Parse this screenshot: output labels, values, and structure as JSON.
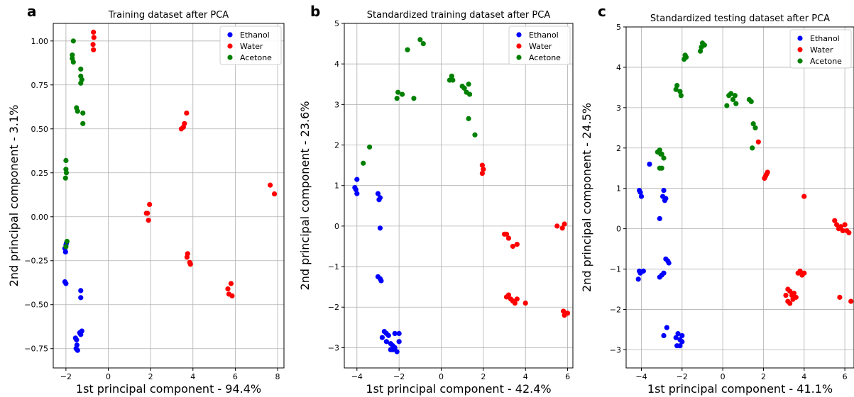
{
  "colors": {
    "Ethanol": "#0000ff",
    "Water": "#ff0000",
    "Acetone": "#008000"
  },
  "chart_data": [
    {
      "panel": "a",
      "type": "scatter",
      "title": "Training dataset after PCA",
      "xlabel": "1st principal component - 94.4%",
      "ylabel": "2nd principal component - 3.1%",
      "xlim": [
        -2.6,
        8.3
      ],
      "ylim": [
        -0.86,
        1.1
      ],
      "xticks": [
        -2,
        0,
        2,
        4,
        6,
        8
      ],
      "yticks": [
        -0.75,
        -0.5,
        -0.25,
        0.0,
        0.25,
        0.5,
        0.75,
        1.0
      ],
      "ytick_labels": [
        "−0.75",
        "−0.50",
        "−0.25",
        "0.00",
        "0.25",
        "0.50",
        "0.75",
        "1.00"
      ],
      "xtick_labels": [
        "−2",
        "0",
        "2",
        "4",
        "6",
        "8"
      ],
      "legend": "top-right",
      "grid": true,
      "series": [
        {
          "name": "Ethanol",
          "points": [
            [
              -2.0,
              -0.16
            ],
            [
              -2.05,
              -0.18
            ],
            [
              -2.02,
              -0.2
            ],
            [
              -1.98,
              -0.15
            ],
            [
              -2.05,
              -0.37
            ],
            [
              -2.0,
              -0.38
            ],
            [
              -1.3,
              -0.42
            ],
            [
              -1.3,
              -0.46
            ],
            [
              -1.35,
              -0.66
            ],
            [
              -1.3,
              -0.67
            ],
            [
              -1.55,
              -0.69
            ],
            [
              -1.5,
              -0.7
            ],
            [
              -1.48,
              -0.73
            ],
            [
              -1.52,
              -0.75
            ],
            [
              -1.45,
              -0.76
            ],
            [
              -1.25,
              -0.65
            ]
          ]
        },
        {
          "name": "Water",
          "points": [
            [
              -0.7,
              1.05
            ],
            [
              -0.68,
              1.02
            ],
            [
              -0.72,
              0.98
            ],
            [
              -0.7,
              0.95
            ],
            [
              3.45,
              0.5
            ],
            [
              3.55,
              0.51
            ],
            [
              3.6,
              0.53
            ],
            [
              3.7,
              0.59
            ],
            [
              1.85,
              0.02
            ],
            [
              1.95,
              0.07
            ],
            [
              1.9,
              -0.02
            ],
            [
              1.8,
              0.02
            ],
            [
              3.75,
              -0.21
            ],
            [
              3.72,
              -0.23
            ],
            [
              3.85,
              -0.26
            ],
            [
              3.88,
              -0.27
            ],
            [
              5.65,
              -0.41
            ],
            [
              5.7,
              -0.44
            ],
            [
              5.8,
              -0.38
            ],
            [
              5.85,
              -0.45
            ],
            [
              7.65,
              0.18
            ],
            [
              7.85,
              0.13
            ]
          ]
        },
        {
          "name": "Acetone",
          "points": [
            [
              -1.65,
              1.0
            ],
            [
              -1.7,
              0.92
            ],
            [
              -1.7,
              0.9
            ],
            [
              -1.65,
              0.88
            ],
            [
              -1.3,
              0.84
            ],
            [
              -1.3,
              0.8
            ],
            [
              -1.25,
              0.78
            ],
            [
              -1.3,
              0.76
            ],
            [
              -1.5,
              0.62
            ],
            [
              -1.45,
              0.6
            ],
            [
              -1.2,
              0.59
            ],
            [
              -1.2,
              0.53
            ],
            [
              -2.0,
              0.32
            ],
            [
              -2.0,
              0.27
            ],
            [
              -1.98,
              0.25
            ],
            [
              -2.02,
              0.22
            ],
            [
              -1.95,
              -0.14
            ],
            [
              -2.0,
              -0.17
            ]
          ]
        }
      ]
    },
    {
      "panel": "b",
      "type": "scatter",
      "title": "Standardized training dataset after PCA",
      "xlabel": "1st principal component - 42.4%",
      "ylabel": "2nd principal component  - 23.6%",
      "xlim": [
        -4.6,
        6.25
      ],
      "ylim": [
        -3.5,
        5.0
      ],
      "xticks": [
        -4,
        -2,
        0,
        2,
        4,
        6
      ],
      "xtick_labels": [
        "−4",
        "−2",
        "0",
        "2",
        "4",
        "6"
      ],
      "yticks": [
        -3,
        -2,
        -1,
        0,
        1,
        2,
        3,
        4,
        5
      ],
      "ytick_labels": [
        "−3",
        "−2",
        "−1",
        "0",
        "1",
        "2",
        "3",
        "4",
        "5"
      ],
      "legend": "top-right",
      "grid": true,
      "series": [
        {
          "name": "Ethanol",
          "points": [
            [
              -4.1,
              0.95
            ],
            [
              -4.0,
              1.15
            ],
            [
              -4.05,
              0.9
            ],
            [
              -4.0,
              0.8
            ],
            [
              -3.0,
              0.8
            ],
            [
              -2.9,
              0.7
            ],
            [
              -2.95,
              0.65
            ],
            [
              -2.9,
              -0.05
            ],
            [
              -3.0,
              -1.25
            ],
            [
              -2.9,
              -1.3
            ],
            [
              -2.85,
              -1.35
            ],
            [
              -2.7,
              -2.6
            ],
            [
              -2.6,
              -2.65
            ],
            [
              -2.5,
              -2.7
            ],
            [
              -2.8,
              -2.75
            ],
            [
              -2.6,
              -2.85
            ],
            [
              -2.4,
              -2.9
            ],
            [
              -2.3,
              -2.95
            ],
            [
              -2.2,
              -3.0
            ],
            [
              -2.4,
              -3.05
            ],
            [
              -2.1,
              -3.1
            ],
            [
              -2.0,
              -2.65
            ],
            [
              -2.2,
              -2.65
            ],
            [
              -2.0,
              -2.85
            ],
            [
              -2.3,
              -3.05
            ]
          ]
        },
        {
          "name": "Water",
          "points": [
            [
              1.95,
              1.5
            ],
            [
              2.0,
              1.4
            ],
            [
              1.95,
              1.3
            ],
            [
              3.0,
              -0.2
            ],
            [
              3.1,
              -0.2
            ],
            [
              3.2,
              -0.3
            ],
            [
              3.4,
              -0.5
            ],
            [
              3.6,
              -0.45
            ],
            [
              3.2,
              -1.7
            ],
            [
              3.1,
              -1.75
            ],
            [
              3.3,
              -1.8
            ],
            [
              3.4,
              -1.85
            ],
            [
              3.5,
              -1.9
            ],
            [
              3.6,
              -1.8
            ],
            [
              4.0,
              -1.9
            ],
            [
              5.5,
              0.0
            ],
            [
              5.75,
              -0.05
            ],
            [
              5.85,
              0.05
            ],
            [
              5.8,
              -2.1
            ],
            [
              5.9,
              -2.15
            ],
            [
              5.85,
              -2.2
            ],
            [
              6.0,
              -2.15
            ]
          ]
        },
        {
          "name": "Acetone",
          "points": [
            [
              -3.7,
              1.55
            ],
            [
              -3.4,
              1.95
            ],
            [
              -2.1,
              3.15
            ],
            [
              -2.05,
              3.3
            ],
            [
              -1.85,
              3.25
            ],
            [
              -1.3,
              3.15
            ],
            [
              -1.6,
              4.35
            ],
            [
              -1.0,
              4.6
            ],
            [
              -0.85,
              4.5
            ],
            [
              0.4,
              3.6
            ],
            [
              0.5,
              3.7
            ],
            [
              0.55,
              3.6
            ],
            [
              1.0,
              3.45
            ],
            [
              1.1,
              3.4
            ],
            [
              1.3,
              3.5
            ],
            [
              1.2,
              3.3
            ],
            [
              1.35,
              3.25
            ],
            [
              1.3,
              2.65
            ],
            [
              1.6,
              2.25
            ]
          ]
        }
      ]
    },
    {
      "panel": "c",
      "type": "scatter",
      "title": "Standardized testing dataset after PCA",
      "xlabel": "1st principal component - 41.1%",
      "ylabel": "2nd principal component  - 24.5%",
      "xlim": [
        -4.75,
        6.45
      ],
      "ylim": [
        -3.45,
        5.0
      ],
      "xticks": [
        -4,
        -2,
        0,
        2,
        4,
        6
      ],
      "xtick_labels": [
        "−4",
        "−2",
        "0",
        "2",
        "4",
        "6"
      ],
      "yticks": [
        -3,
        -2,
        -1,
        0,
        1,
        2,
        3,
        4,
        5
      ],
      "ytick_labels": [
        "−3",
        "−2",
        "−1",
        "0",
        "1",
        "2",
        "3",
        "4",
        "5"
      ],
      "legend": "top-right",
      "grid": true,
      "series": [
        {
          "name": "Ethanol",
          "points": [
            [
              -4.1,
              0.95
            ],
            [
              -4.05,
              0.9
            ],
            [
              -4.0,
              0.8
            ],
            [
              -4.1,
              -1.05
            ],
            [
              -4.05,
              -1.1
            ],
            [
              -4.15,
              -1.25
            ],
            [
              -3.9,
              -1.05
            ],
            [
              -3.6,
              1.6
            ],
            [
              -3.1,
              0.25
            ],
            [
              -2.9,
              0.95
            ],
            [
              -2.95,
              0.8
            ],
            [
              -2.85,
              0.7
            ],
            [
              -2.8,
              0.75
            ],
            [
              -3.0,
              -1.15
            ],
            [
              -3.1,
              -1.2
            ],
            [
              -2.9,
              -1.1
            ],
            [
              -2.7,
              -0.8
            ],
            [
              -2.65,
              -0.85
            ],
            [
              -2.8,
              -0.75
            ],
            [
              -2.75,
              -2.45
            ],
            [
              -2.9,
              -2.65
            ],
            [
              -2.2,
              -2.6
            ],
            [
              -2.3,
              -2.7
            ],
            [
              -2.1,
              -2.75
            ],
            [
              -2.0,
              -2.65
            ],
            [
              -2.25,
              -2.9
            ],
            [
              -2.1,
              -2.9
            ],
            [
              -2.0,
              -2.8
            ]
          ]
        },
        {
          "name": "Water",
          "points": [
            [
              1.75,
              2.15
            ],
            [
              2.1,
              1.3
            ],
            [
              2.15,
              1.35
            ],
            [
              2.2,
              1.4
            ],
            [
              2.05,
              1.25
            ],
            [
              4.0,
              0.8
            ],
            [
              3.2,
              -1.5
            ],
            [
              3.3,
              -1.55
            ],
            [
              3.1,
              -1.65
            ],
            [
              3.4,
              -1.65
            ],
            [
              3.5,
              -1.6
            ],
            [
              3.6,
              -1.7
            ],
            [
              3.2,
              -1.8
            ],
            [
              3.3,
              -1.85
            ],
            [
              3.45,
              -1.75
            ],
            [
              3.7,
              -1.1
            ],
            [
              3.8,
              -1.05
            ],
            [
              3.9,
              -1.15
            ],
            [
              4.0,
              -1.1
            ],
            [
              5.5,
              0.2
            ],
            [
              5.6,
              0.1
            ],
            [
              5.7,
              0.0
            ],
            [
              5.8,
              0.05
            ],
            [
              5.9,
              -0.05
            ],
            [
              6.0,
              0.1
            ],
            [
              6.1,
              -0.05
            ],
            [
              6.2,
              -0.1
            ],
            [
              5.75,
              -1.7
            ],
            [
              6.3,
              -1.8
            ]
          ]
        },
        {
          "name": "Acetone",
          "points": [
            [
              -3.2,
              1.9
            ],
            [
              -3.1,
              1.95
            ],
            [
              -3.05,
              1.85
            ],
            [
              -3.0,
              1.85
            ],
            [
              -2.9,
              1.75
            ],
            [
              -3.0,
              1.5
            ],
            [
              -3.1,
              1.5
            ],
            [
              -2.3,
              3.45
            ],
            [
              -2.25,
              3.55
            ],
            [
              -2.1,
              3.4
            ],
            [
              -2.05,
              3.3
            ],
            [
              -1.9,
              4.2
            ],
            [
              -1.85,
              4.3
            ],
            [
              -1.8,
              4.25
            ],
            [
              -1.1,
              4.4
            ],
            [
              -1.05,
              4.5
            ],
            [
              -1.0,
              4.6
            ],
            [
              -0.9,
              4.55
            ],
            [
              0.2,
              3.05
            ],
            [
              0.3,
              3.3
            ],
            [
              0.4,
              3.35
            ],
            [
              0.5,
              3.2
            ],
            [
              0.6,
              3.3
            ],
            [
              0.65,
              3.1
            ],
            [
              1.3,
              3.2
            ],
            [
              1.4,
              3.15
            ],
            [
              1.45,
              2.0
            ],
            [
              1.5,
              2.6
            ],
            [
              1.6,
              2.5
            ]
          ]
        }
      ]
    }
  ]
}
